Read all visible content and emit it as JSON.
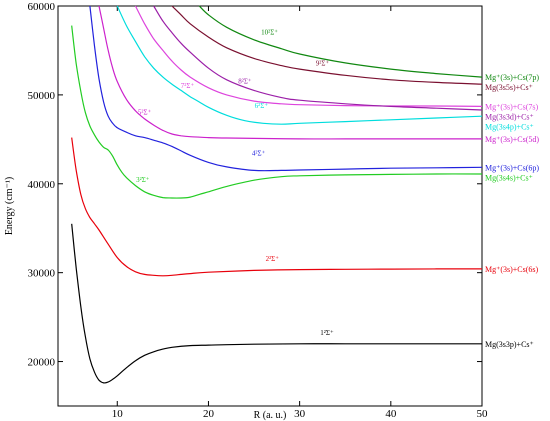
{
  "chart_data": {
    "type": "line",
    "xlabel": "R (a. u.)",
    "ylabel": "Energy (cm⁻¹)",
    "xlim": [
      3.5,
      50
    ],
    "ylim": [
      15000,
      60000
    ],
    "xticks": [
      10,
      20,
      30,
      40,
      50
    ],
    "yticks": [
      20000,
      30000,
      40000,
      50000,
      60000
    ],
    "grid": false,
    "series": [
      {
        "name": "1²Σ⁺",
        "asymptote": "Mg(3s3p)+Cs⁺",
        "color": "#000000",
        "label_x": 33,
        "label_y": 23000,
        "x": [
          5,
          5.5,
          6,
          6.5,
          7,
          7.5,
          8,
          8.5,
          9,
          9.5,
          10,
          11,
          12,
          13,
          14,
          15,
          16,
          18,
          20,
          22,
          25,
          30,
          35,
          40,
          45,
          50
        ],
        "y": [
          35500,
          30500,
          26200,
          22800,
          20300,
          18800,
          17900,
          17600,
          17700,
          18000,
          18400,
          19300,
          20100,
          20700,
          21100,
          21400,
          21600,
          21800,
          21850,
          21900,
          21950,
          22000,
          22000,
          22000,
          22000,
          22000
        ]
      },
      {
        "name": "2²Σ⁺",
        "asymptote": "Mg⁺(3s)+Cs(6s)",
        "color": "#e8000b",
        "label_x": 27,
        "label_y": 31300,
        "x": [
          5,
          5.5,
          6,
          6.5,
          7,
          7.5,
          8,
          9,
          10,
          11,
          12,
          13,
          14,
          15,
          16,
          17,
          18,
          20,
          25,
          30,
          35,
          40,
          45,
          50
        ],
        "y": [
          45200,
          41500,
          38800,
          37200,
          36200,
          35500,
          34800,
          33200,
          31700,
          30700,
          30100,
          29800,
          29700,
          29650,
          29700,
          29800,
          29900,
          30050,
          30250,
          30350,
          30380,
          30400,
          30420,
          30420
        ]
      },
      {
        "name": "3²Σ⁺",
        "asymptote": "Mg(3s4s)+Cs⁺",
        "color": "#22cc22",
        "label_x": 12.8,
        "label_y": 40200,
        "x": [
          5,
          5.5,
          6,
          6.5,
          7,
          7.5,
          8,
          8.5,
          9,
          9.5,
          10,
          10.5,
          11,
          12,
          13,
          14,
          15,
          16,
          17,
          18,
          19,
          20,
          22,
          25,
          28,
          30,
          35,
          40,
          45,
          50
        ],
        "y": [
          57800,
          53500,
          50400,
          48000,
          46500,
          45500,
          44700,
          44100,
          43800,
          43100,
          42100,
          41300,
          40700,
          39800,
          39100,
          38700,
          38450,
          38400,
          38400,
          38500,
          38800,
          39100,
          39700,
          40400,
          40800,
          40900,
          41000,
          41050,
          41100,
          41100
        ]
      },
      {
        "name": "4²Σ⁺",
        "asymptote": "Mg⁺(3s)+Cs(6p)",
        "color": "#2222dd",
        "label_x": 25.5,
        "label_y": 43200,
        "x": [
          7,
          7.5,
          8,
          8.5,
          9,
          9.5,
          10,
          11,
          12,
          13,
          14,
          15,
          16,
          17,
          18,
          20,
          22,
          25,
          28,
          30,
          35,
          40,
          45,
          50
        ],
        "y": [
          60000,
          55500,
          51800,
          49200,
          47600,
          46800,
          46300,
          45800,
          45400,
          45200,
          44900,
          44600,
          44200,
          43700,
          43200,
          42400,
          41900,
          41500,
          41500,
          41550,
          41650,
          41750,
          41800,
          41850
        ]
      },
      {
        "name": "5²Σ⁺",
        "asymptote": "Mg⁺(3s)+Cs(5d)",
        "color": "#cc22cc",
        "label_x": 13,
        "label_y": 47800,
        "x": [
          8,
          8.5,
          9,
          9.5,
          10,
          11,
          12,
          13,
          14,
          15,
          16,
          17,
          18,
          20,
          22,
          25,
          30,
          35,
          40,
          45,
          50
        ],
        "y": [
          60000,
          57500,
          55000,
          53000,
          51500,
          49500,
          48200,
          47300,
          46600,
          46000,
          45600,
          45400,
          45300,
          45200,
          45150,
          45100,
          45050,
          45050,
          45050,
          45050,
          45050
        ]
      },
      {
        "name": "6²Σ⁺",
        "asymptote": "Mg(3s4p)+Cs⁺",
        "color": "#00dddd",
        "label_x": 25.8,
        "label_y": 48500,
        "x": [
          10,
          11,
          12,
          13,
          14,
          15,
          16,
          17,
          18,
          19,
          20,
          22,
          24,
          26,
          28,
          30,
          35,
          40,
          45,
          50
        ],
        "y": [
          60000,
          57800,
          56000,
          54300,
          53000,
          52000,
          51200,
          50500,
          49800,
          49200,
          48600,
          47700,
          47100,
          46800,
          46700,
          46800,
          47000,
          47200,
          47400,
          47600
        ]
      },
      {
        "name": "7²Σ⁺",
        "asymptote": "Mg⁺(3s)+Cs(7s)",
        "color": "#dd44dd",
        "label_x": 17.7,
        "label_y": 50800,
        "x": [
          12,
          13,
          14,
          15,
          16,
          17,
          18,
          20,
          22,
          25,
          28,
          30,
          35,
          40,
          45,
          50
        ],
        "y": [
          60000,
          58000,
          56300,
          55000,
          53800,
          52800,
          52000,
          50800,
          50000,
          49300,
          49000,
          48900,
          48800,
          48750,
          48750,
          48700
        ]
      },
      {
        "name": "8²Σ⁺",
        "asymptote": "Mg(3s3d)+Cs⁺",
        "color": "#9b1fa8",
        "label_x": 24,
        "label_y": 51300,
        "x": [
          14,
          15,
          16,
          17,
          18,
          20,
          22,
          25,
          28,
          30,
          35,
          40,
          45,
          50
        ],
        "y": [
          60000,
          58300,
          57000,
          55800,
          54800,
          53000,
          51700,
          50500,
          49700,
          49400,
          49000,
          48700,
          48500,
          48300
        ]
      },
      {
        "name": "9²Σ⁺",
        "asymptote": "Mg(3s5s)+Cs⁺",
        "color": "#7a1030",
        "label_x": 32.5,
        "label_y": 53300,
        "x": [
          16,
          17,
          18,
          20,
          22,
          25,
          28,
          30,
          35,
          40,
          45,
          50
        ],
        "y": [
          60000,
          59000,
          58000,
          56500,
          55300,
          54100,
          53300,
          52900,
          52200,
          51700,
          51400,
          51200
        ]
      },
      {
        "name": "10²Σ⁺",
        "asymptote": "Mg⁺(3s)+Cs(7p)",
        "color": "#118811",
        "label_x": 26.7,
        "label_y": 56800,
        "x": [
          19,
          20,
          22,
          25,
          28,
          30,
          35,
          40,
          45,
          50
        ],
        "y": [
          60000,
          59000,
          57600,
          56200,
          55200,
          54600,
          53600,
          52900,
          52400,
          52000
        ]
      }
    ]
  }
}
